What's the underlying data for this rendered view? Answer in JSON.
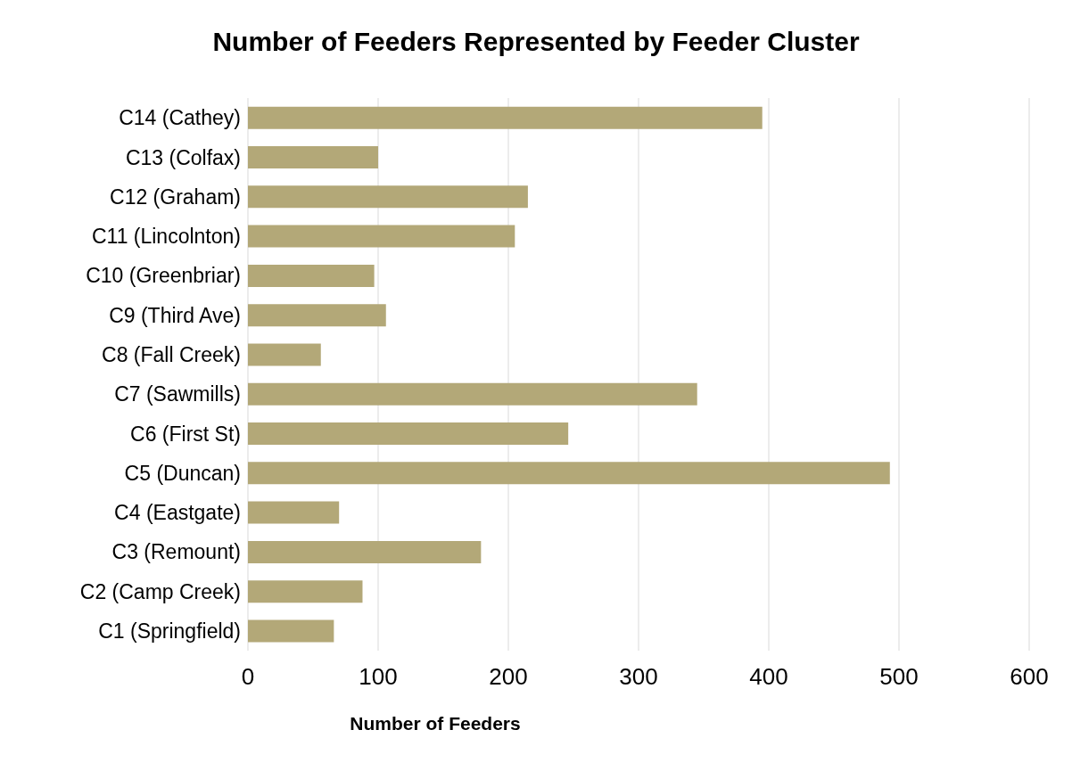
{
  "chart_data": {
    "type": "bar",
    "orientation": "horizontal",
    "title": "Number of Feeders Represented by Feeder Cluster",
    "xlabel": "Number of Feeders",
    "categories": [
      "C14 (Cathey)",
      "C13 (Colfax)",
      "C12 (Graham)",
      "C11 (Lincolnton)",
      "C10 (Greenbriar)",
      "C9 (Third Ave)",
      "C8 (Fall Creek)",
      "C7 (Sawmills)",
      "C6 (First St)",
      "C5 (Duncan)",
      "C4 (Eastgate)",
      "C3 (Remount)",
      "C2 (Camp Creek)",
      "C1 (Springfield)"
    ],
    "values": [
      395,
      100,
      215,
      205,
      97,
      106,
      56,
      345,
      246,
      493,
      70,
      179,
      88,
      66
    ],
    "color": "#b3a878",
    "xlim": [
      0,
      600
    ],
    "xticks": [
      0,
      100,
      200,
      300,
      400,
      500,
      600
    ],
    "grid": "x"
  }
}
